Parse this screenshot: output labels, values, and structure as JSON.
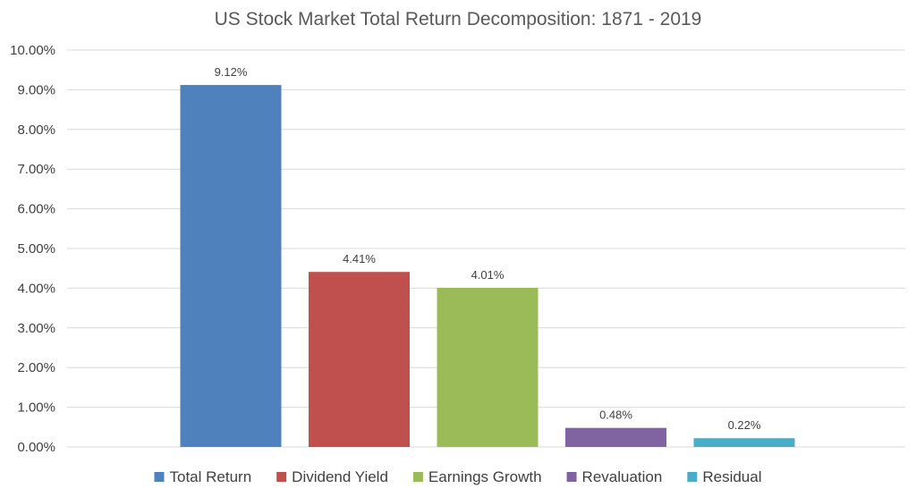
{
  "chart_data": {
    "type": "bar",
    "title": "US Stock Market Total Return Decomposition: 1871 - 2019",
    "xlabel": "",
    "ylabel": "",
    "ylim": [
      0,
      10
    ],
    "yticks": [
      0,
      1,
      2,
      3,
      4,
      5,
      6,
      7,
      8,
      9,
      10
    ],
    "ytick_labels": [
      "0.00%",
      "1.00%",
      "2.00%",
      "3.00%",
      "4.00%",
      "5.00%",
      "6.00%",
      "7.00%",
      "8.00%",
      "9.00%",
      "10.00%"
    ],
    "grid": true,
    "legend_position": "bottom",
    "series": [
      {
        "name": "Total Return",
        "value": 9.12,
        "label": "9.12%",
        "color": "#4f81bd"
      },
      {
        "name": "Dividend Yield",
        "value": 4.41,
        "label": "4.41%",
        "color": "#c0504d"
      },
      {
        "name": "Earnings Growth",
        "value": 4.01,
        "label": "4.01%",
        "color": "#9bbb59"
      },
      {
        "name": "Revaluation",
        "value": 0.48,
        "label": "0.48%",
        "color": "#8064a2"
      },
      {
        "name": "Residual",
        "value": 0.22,
        "label": "0.22%",
        "color": "#4bacc6"
      }
    ]
  }
}
